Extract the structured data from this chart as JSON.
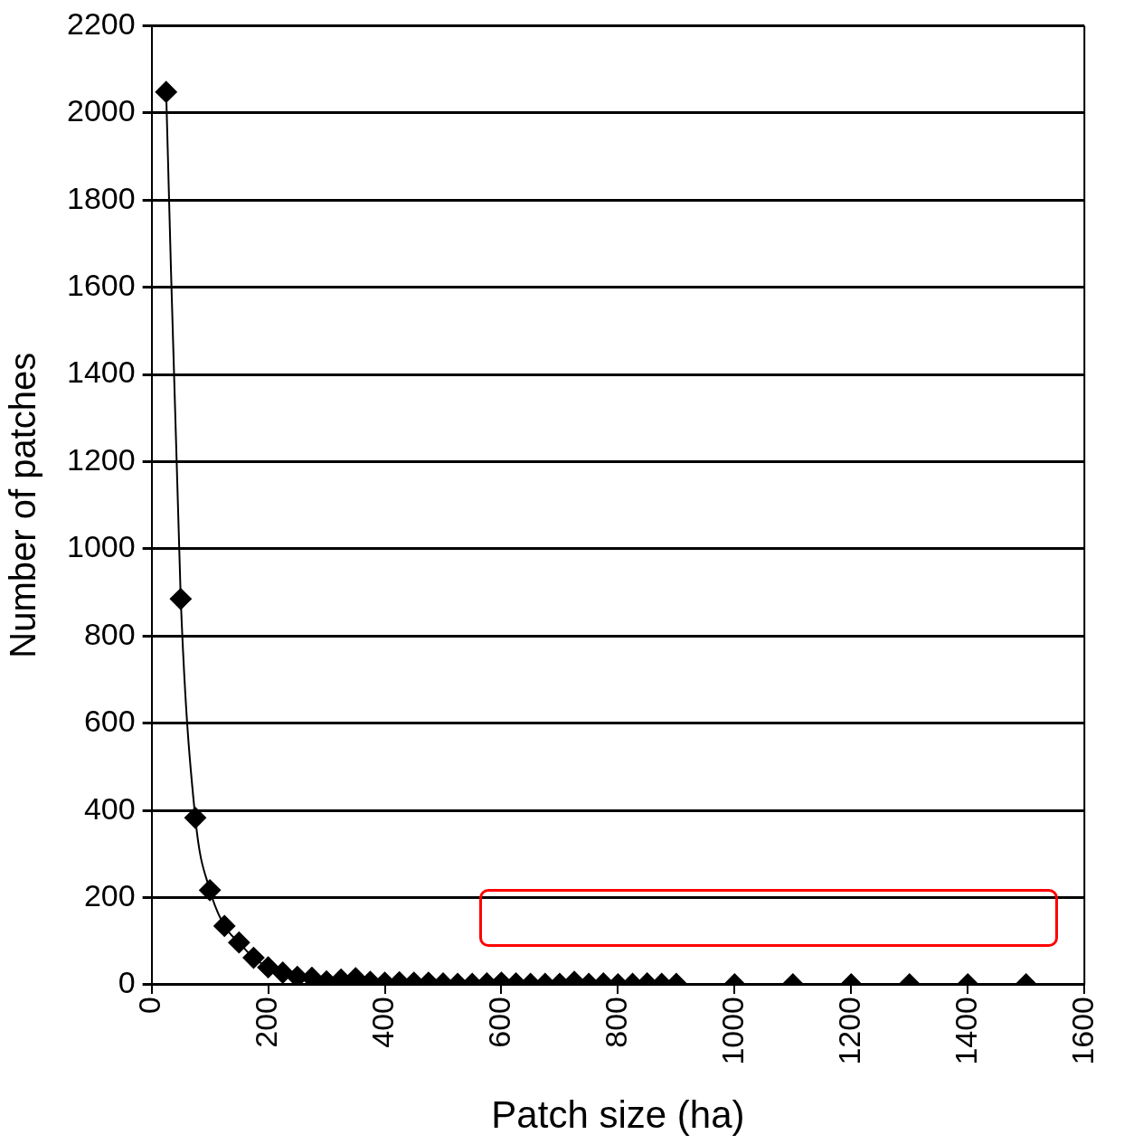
{
  "chart_data": {
    "type": "line",
    "xlabel": "Patch size (ha)",
    "ylabel": "Number of patches",
    "x": [
      25,
      50,
      75,
      100,
      125,
      150,
      175,
      200,
      225,
      250,
      275,
      300,
      325,
      350,
      375,
      400,
      425,
      450,
      475,
      500,
      525,
      550,
      575,
      600,
      625,
      650,
      675,
      700,
      725,
      750,
      775,
      800,
      825,
      850,
      875,
      900,
      1000,
      1100,
      1200,
      1300,
      1400,
      1500
    ],
    "series": [
      {
        "color": "#000000",
        "values": [
          2048,
          885,
          383,
          217,
          135,
          97,
          62,
          40,
          28,
          18,
          16,
          8,
          12,
          15,
          7,
          5,
          6,
          5,
          5,
          3,
          2,
          2,
          3,
          5,
          3,
          2,
          2,
          2,
          7,
          2,
          3,
          1,
          2,
          3,
          2,
          2,
          1,
          1,
          1,
          1,
          1,
          1
        ]
      }
    ],
    "xlim": [
      0,
      1600
    ],
    "xticks": [
      0,
      200,
      400,
      600,
      800,
      1000,
      1200,
      1400,
      1600
    ],
    "ylim": [
      0,
      2200
    ],
    "yticks": [
      0,
      200,
      400,
      600,
      800,
      1000,
      1200,
      1400,
      1600,
      1800,
      2000,
      2200
    ],
    "grid": "y",
    "legend": false,
    "marker": "diamond",
    "line_style": "solid"
  }
}
